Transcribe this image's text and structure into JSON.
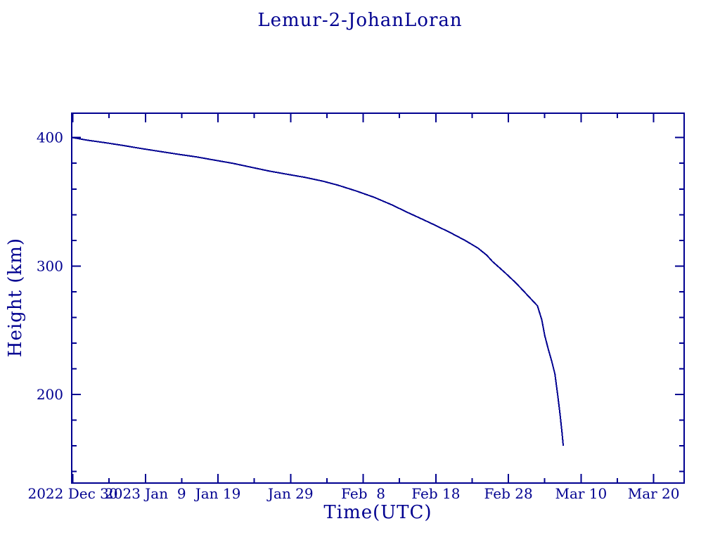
{
  "colors": {
    "ink": "#000090",
    "background": "#ffffff"
  },
  "chart_data": {
    "type": "line",
    "title": "Lemur-2-JohanLoran",
    "xlabel": "Time(UTC)",
    "ylabel": "Height (km)",
    "grid": false,
    "legend": "none",
    "x_axis": {
      "unit": "days since 2022 Dec 30 00:00 UTC",
      "range": [
        -0.15,
        84.2
      ],
      "major_ticks": [
        {
          "day": 0,
          "label": "2022 Dec 30"
        },
        {
          "day": 10,
          "label": "2023 Jan  9"
        },
        {
          "day": 20,
          "label": "Jan 19"
        },
        {
          "day": 30,
          "label": "Jan 29"
        },
        {
          "day": 40,
          "label": "Feb  8"
        },
        {
          "day": 50,
          "label": "Feb 18"
        },
        {
          "day": 60,
          "label": "Feb 28"
        },
        {
          "day": 70,
          "label": "Mar 10"
        },
        {
          "day": 80,
          "label": "Mar 20"
        }
      ],
      "minor_tick_step_days": 5
    },
    "y_axis": {
      "unit": "km",
      "range": [
        131,
        419
      ],
      "major_ticks": [
        {
          "value": 200,
          "label": "200"
        },
        {
          "value": 300,
          "label": "300"
        },
        {
          "value": 400,
          "label": "400"
        }
      ],
      "minor_tick_step": 20
    },
    "series": [
      {
        "name": "Lemur-2-JohanLoran height",
        "color": "#000090",
        "points_day_km": [
          [
            0,
            400
          ],
          [
            2,
            398
          ],
          [
            4.5,
            396
          ],
          [
            7,
            393.8
          ],
          [
            9.4,
            391.5
          ],
          [
            12,
            389.2
          ],
          [
            14.5,
            387
          ],
          [
            17,
            385
          ],
          [
            19.5,
            382.5
          ],
          [
            22,
            380
          ],
          [
            24.5,
            377
          ],
          [
            27,
            374
          ],
          [
            29.5,
            371.5
          ],
          [
            32,
            369
          ],
          [
            34.5,
            366
          ],
          [
            36.5,
            363
          ],
          [
            39,
            358.5
          ],
          [
            41.5,
            353.5
          ],
          [
            44,
            347.5
          ],
          [
            46,
            342
          ],
          [
            48,
            336.8
          ],
          [
            50,
            331.5
          ],
          [
            52,
            326
          ],
          [
            54,
            320
          ],
          [
            55.8,
            314
          ],
          [
            57,
            308.5
          ],
          [
            57.8,
            303.5
          ],
          [
            59.5,
            295
          ],
          [
            61,
            287
          ],
          [
            62,
            281
          ],
          [
            63,
            275
          ],
          [
            64,
            269
          ],
          [
            64.6,
            258
          ],
          [
            65,
            246
          ],
          [
            65.5,
            235
          ],
          [
            66,
            225
          ],
          [
            66.4,
            216
          ],
          [
            66.8,
            199
          ],
          [
            67.1,
            185
          ],
          [
            67.35,
            172
          ],
          [
            67.55,
            160
          ]
        ]
      }
    ]
  }
}
